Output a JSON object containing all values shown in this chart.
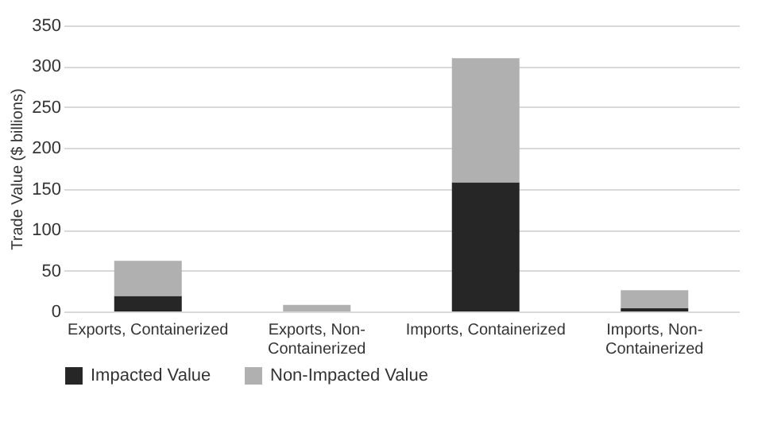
{
  "chart_data": {
    "type": "bar",
    "stacked": true,
    "ylabel": "Trade Value ($ billions)",
    "categories": [
      "Exports, Containerized",
      "Exports, Non-Containerized",
      "Imports, Containerized",
      "Imports, Non-Containerized"
    ],
    "series": [
      {
        "name": "Impacted Value",
        "color": "#262626",
        "values": [
          19,
          0,
          158,
          4
        ]
      },
      {
        "name": "Non-Impacted Value",
        "color": "#b0b0b0",
        "values": [
          43,
          8,
          152,
          22
        ]
      }
    ],
    "ylim": [
      0,
      350
    ],
    "yticks": [
      0,
      50,
      100,
      150,
      200,
      250,
      300,
      350
    ],
    "grid": "y",
    "legend": "bottom"
  }
}
